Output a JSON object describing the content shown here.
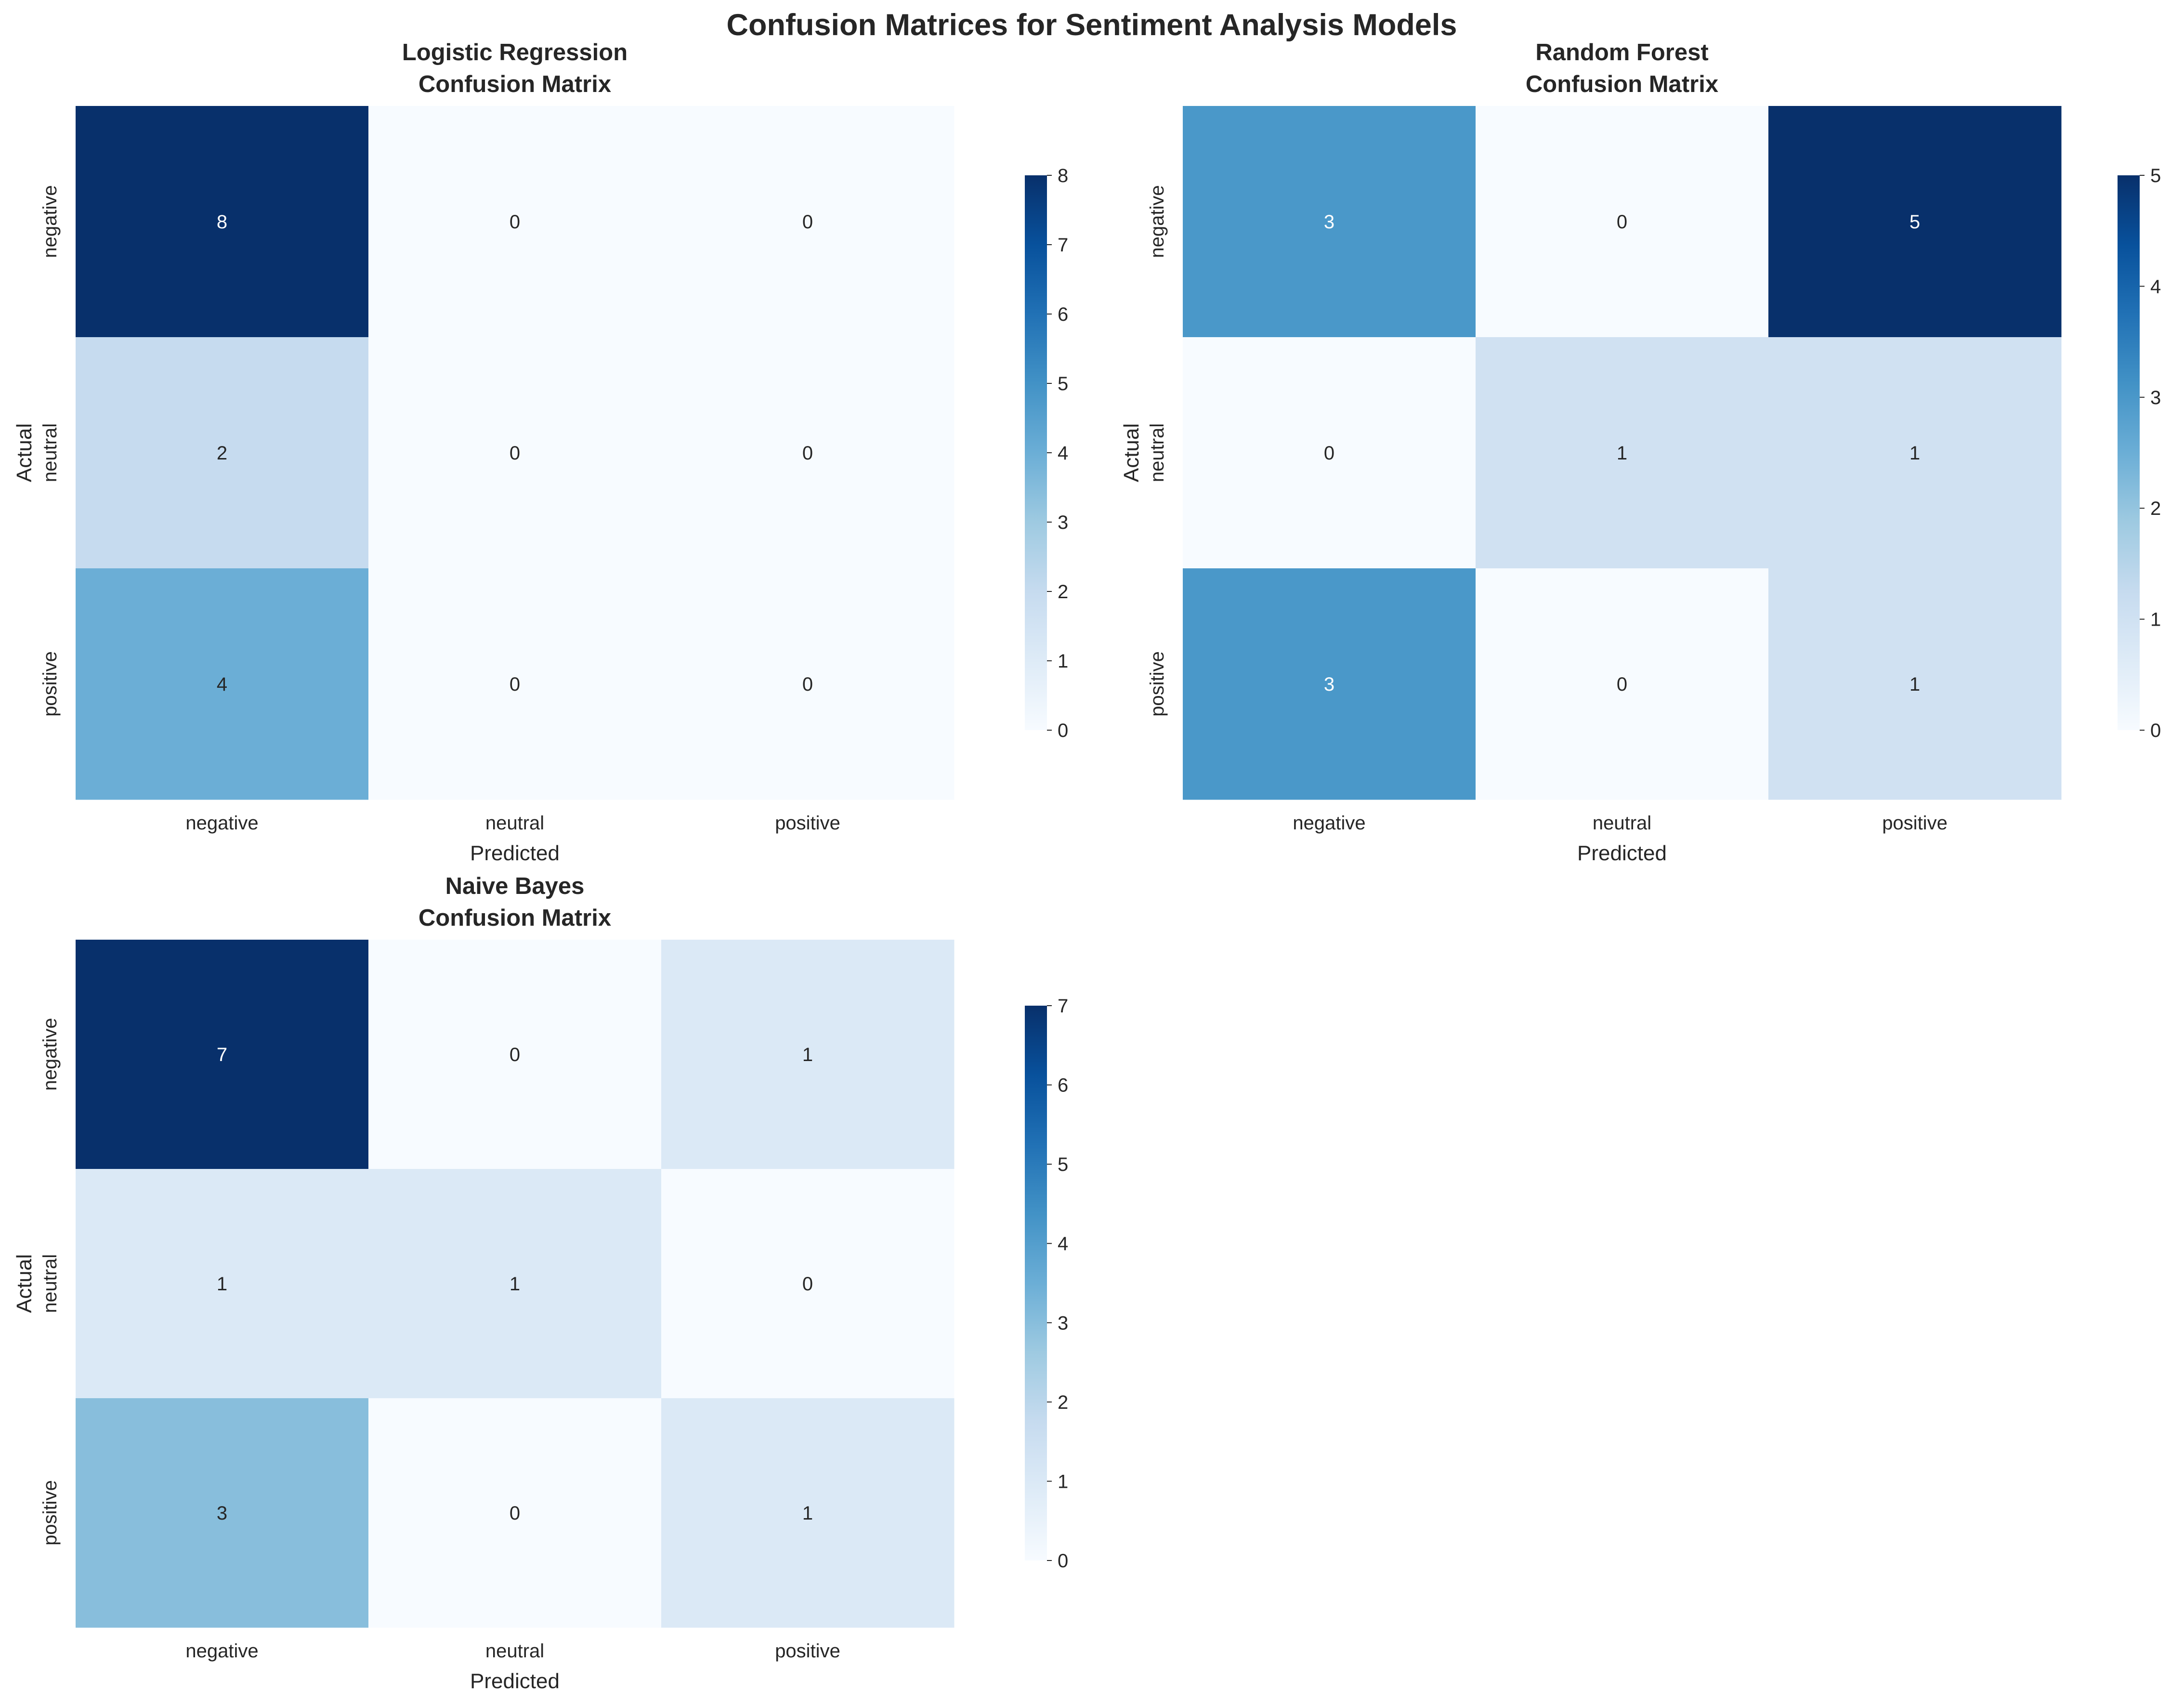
{
  "figure": {
    "title": "Confusion Matrices for Sentiment Analysis Models"
  },
  "chart_data": [
    {
      "type": "heatmap",
      "title": "Logistic Regression\nConfusion Matrix",
      "xlabel": "Predicted",
      "ylabel": "Actual",
      "x_categories": [
        "negative",
        "neutral",
        "positive"
      ],
      "y_categories": [
        "negative",
        "neutral",
        "positive"
      ],
      "values": [
        [
          8,
          0,
          0
        ],
        [
          2,
          0,
          0
        ],
        [
          4,
          0,
          0
        ]
      ],
      "colorbar": {
        "min": 0,
        "max": 8,
        "ticks": [
          0,
          1,
          2,
          3,
          4,
          5,
          6,
          7,
          8
        ]
      },
      "colormap": "Blues"
    },
    {
      "type": "heatmap",
      "title": "Random Forest\nConfusion Matrix",
      "xlabel": "Predicted",
      "ylabel": "Actual",
      "x_categories": [
        "negative",
        "neutral",
        "positive"
      ],
      "y_categories": [
        "negative",
        "neutral",
        "positive"
      ],
      "values": [
        [
          3,
          0,
          5
        ],
        [
          0,
          1,
          1
        ],
        [
          3,
          0,
          1
        ]
      ],
      "colorbar": {
        "min": 0,
        "max": 5,
        "ticks": [
          0,
          1,
          2,
          3,
          4,
          5
        ]
      },
      "colormap": "Blues"
    },
    {
      "type": "heatmap",
      "title": "Naive Bayes\nConfusion Matrix",
      "xlabel": "Predicted",
      "ylabel": "Actual",
      "x_categories": [
        "negative",
        "neutral",
        "positive"
      ],
      "y_categories": [
        "negative",
        "neutral",
        "positive"
      ],
      "values": [
        [
          7,
          0,
          1
        ],
        [
          1,
          1,
          0
        ],
        [
          3,
          0,
          1
        ]
      ],
      "colorbar": {
        "min": 0,
        "max": 7,
        "ticks": [
          0,
          1,
          2,
          3,
          4,
          5,
          6,
          7
        ]
      },
      "colormap": "Blues"
    }
  ]
}
